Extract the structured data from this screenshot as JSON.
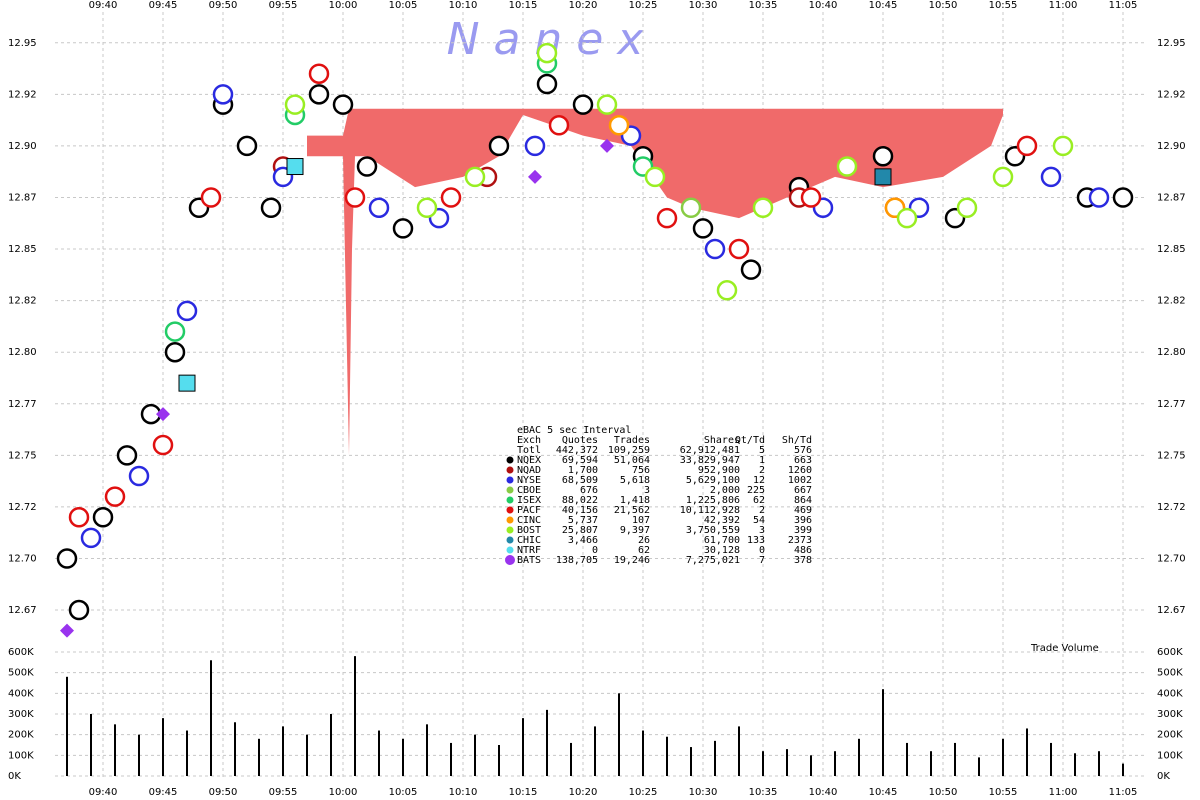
{
  "chart_data": [
    {
      "type": "scatter",
      "watermark": "N   a   n   e   x",
      "xlim": [
        "09:36",
        "11:07"
      ],
      "xticks": [
        "09:40",
        "09:45",
        "09:50",
        "09:55",
        "10:00",
        "10:05",
        "10:10",
        "10:15",
        "10:20",
        "10:25",
        "10:30",
        "10:35",
        "10:40",
        "10:45",
        "10:50",
        "10:55",
        "11:00",
        "11:05"
      ],
      "ylim": [
        12.66,
        12.962
      ],
      "yticks": [
        {
          "value": 12.95,
          "label": "12.95"
        },
        {
          "value": 12.925,
          "label": "12.92"
        },
        {
          "value": 12.9,
          "label": "12.90"
        },
        {
          "value": 12.875,
          "label": "12.87"
        },
        {
          "value": 12.85,
          "label": "12.85"
        },
        {
          "value": 12.825,
          "label": "12.82"
        },
        {
          "value": 12.8,
          "label": "12.80"
        },
        {
          "value": 12.775,
          "label": "12.77"
        },
        {
          "value": 12.75,
          "label": "12.75"
        },
        {
          "value": 12.725,
          "label": "12.72"
        },
        {
          "value": 12.7,
          "label": "12.70"
        },
        {
          "value": 12.675,
          "label": "12.67"
        }
      ],
      "grid": true,
      "band": {
        "color": "#f06a6a",
        "x": [
          "09:57",
          "10:00",
          "10:00:30",
          "10:00:45",
          "10:01",
          "10:02",
          "10:06",
          "10:10",
          "10:13",
          "10:15",
          "10:20",
          "10:24",
          "10:27",
          "10:29",
          "10:33",
          "10:37",
          "10:41",
          "10:45",
          "10:50",
          "10:54",
          "10:55"
        ],
        "high": [
          12.905,
          12.905,
          12.918,
          12.918,
          12.918,
          12.918,
          12.918,
          12.918,
          12.918,
          12.918,
          12.918,
          12.918,
          12.918,
          12.918,
          12.918,
          12.918,
          12.918,
          12.918,
          12.918,
          12.918,
          12.918
        ],
        "low": [
          12.895,
          12.895,
          12.75,
          12.85,
          12.895,
          12.895,
          12.88,
          12.885,
          12.895,
          12.915,
          12.905,
          12.9,
          12.875,
          12.87,
          12.865,
          12.875,
          12.885,
          12.88,
          12.885,
          12.9,
          12.915
        ]
      },
      "table": {
        "title": "eBAC 5 sec Interval",
        "header": [
          "Exch",
          "Quotes",
          "Trades",
          "Shares",
          "Qt/Td",
          "Sh/Td"
        ],
        "total": [
          "Totl",
          "442,372",
          "109,259",
          "62,912,481",
          "5",
          "576"
        ]
      },
      "series": [
        {
          "name": "NQEX",
          "color": "#000000",
          "marker": "circle",
          "x": [
            "09:37",
            "09:38",
            "09:40",
            "09:42",
            "09:44",
            "09:46",
            "09:48",
            "09:50",
            "09:52",
            "09:54",
            "09:58",
            "10:00",
            "10:02",
            "10:05",
            "10:13",
            "10:17",
            "10:20",
            "10:25",
            "10:30",
            "10:34",
            "10:38",
            "10:45",
            "10:51",
            "10:56",
            "11:02",
            "11:05"
          ],
          "values": [
            12.7,
            12.675,
            12.72,
            12.75,
            12.77,
            12.8,
            12.87,
            12.92,
            12.9,
            12.87,
            12.925,
            12.92,
            12.89,
            12.86,
            12.9,
            12.93,
            12.92,
            12.895,
            12.86,
            12.84,
            12.88,
            12.895,
            12.865,
            12.895,
            12.875,
            12.875
          ],
          "stats": [
            "69,594",
            "51,064",
            "33,829,947",
            "1",
            "663"
          ]
        },
        {
          "name": "NQAD",
          "color": "#b01010",
          "marker": "circle",
          "x": [
            "09:55",
            "10:12",
            "10:38"
          ],
          "values": [
            12.89,
            12.885,
            12.875
          ],
          "stats": [
            "1,700",
            "756",
            "952,900",
            "2",
            "1260"
          ]
        },
        {
          "name": "NYSE",
          "color": "#2a2ae0",
          "marker": "circle",
          "x": [
            "09:39",
            "09:43",
            "09:47",
            "09:50",
            "09:55",
            "10:03",
            "10:08",
            "10:16",
            "10:24",
            "10:31",
            "10:40",
            "10:48",
            "10:59",
            "11:03"
          ],
          "values": [
            12.71,
            12.74,
            12.82,
            12.925,
            12.885,
            12.87,
            12.865,
            12.9,
            12.905,
            12.85,
            12.87,
            12.87,
            12.885,
            12.875
          ],
          "stats": [
            "68,509",
            "5,618",
            "5,629,100",
            "12",
            "1002"
          ]
        },
        {
          "name": "CBOE",
          "color": "#88cc44",
          "marker": "circle",
          "x": [
            "10:29"
          ],
          "values": [
            12.87
          ],
          "stats": [
            "676",
            "3",
            "2,000",
            "225",
            "667"
          ]
        },
        {
          "name": "ISEX",
          "color": "#22cc66",
          "marker": "circle",
          "x": [
            "09:46",
            "09:56",
            "10:17",
            "10:25"
          ],
          "values": [
            12.81,
            12.915,
            12.94,
            12.89
          ],
          "stats": [
            "88,022",
            "1,418",
            "1,225,806",
            "62",
            "864"
          ]
        },
        {
          "name": "PACF",
          "color": "#e01010",
          "marker": "circle",
          "x": [
            "09:38",
            "09:41",
            "09:45",
            "09:49",
            "09:58",
            "10:01",
            "10:09",
            "10:18",
            "10:27",
            "10:33",
            "10:39",
            "10:46",
            "10:57"
          ],
          "values": [
            12.72,
            12.73,
            12.755,
            12.875,
            12.935,
            12.875,
            12.875,
            12.91,
            12.865,
            12.85,
            12.875,
            12.87,
            12.9
          ],
          "stats": [
            "40,156",
            "21,562",
            "10,112,928",
            "2",
            "469"
          ]
        },
        {
          "name": "CINC",
          "color": "#ff9900",
          "marker": "circle",
          "x": [
            "10:23",
            "10:46"
          ],
          "values": [
            12.91,
            12.87
          ],
          "stats": [
            "5,737",
            "107",
            "42,392",
            "54",
            "396"
          ]
        },
        {
          "name": "BOST",
          "color": "#99ee22",
          "marker": "circle",
          "x": [
            "09:56",
            "10:07",
            "10:11",
            "10:17",
            "10:22",
            "10:26",
            "10:32",
            "10:35",
            "10:42",
            "10:47",
            "10:52",
            "10:55",
            "11:00"
          ],
          "values": [
            12.92,
            12.87,
            12.885,
            12.945,
            12.92,
            12.885,
            12.83,
            12.87,
            12.89,
            12.865,
            12.87,
            12.885,
            12.9
          ],
          "stats": [
            "25,807",
            "9,397",
            "3,750,559",
            "3",
            "399"
          ]
        },
        {
          "name": "CHIC",
          "color": "#2288aa",
          "marker": "square",
          "x": [
            "10:45"
          ],
          "values": [
            12.885
          ],
          "stats": [
            "3,466",
            "26",
            "61,700",
            "133",
            "2373"
          ]
        },
        {
          "name": "NTRF",
          "color": "#55ddee",
          "marker": "square",
          "x": [
            "09:47",
            "09:56"
          ],
          "values": [
            12.785,
            12.89
          ],
          "stats": [
            "0",
            "62",
            "30,128",
            "0",
            "486"
          ]
        },
        {
          "name": "BATS",
          "color": "#9933ee",
          "marker": "diamond",
          "x": [
            "09:37",
            "09:45",
            "10:16",
            "10:22"
          ],
          "values": [
            12.665,
            12.77,
            12.885,
            12.9
          ],
          "stats": [
            "138,705",
            "19,246",
            "7,275,021",
            "7",
            "378"
          ]
        }
      ]
    },
    {
      "type": "bar",
      "label": "Trade Volume",
      "color": "#000000",
      "xlim": [
        "09:36",
        "11:07"
      ],
      "ylim": [
        0,
        600000
      ],
      "yticks": [
        {
          "value": 0,
          "label": "0K"
        },
        {
          "value": 100000,
          "label": "100K"
        },
        {
          "value": 200000,
          "label": "200K"
        },
        {
          "value": 300000,
          "label": "300K"
        },
        {
          "value": 400000,
          "label": "400K"
        },
        {
          "value": 500000,
          "label": "500K"
        },
        {
          "value": 600000,
          "label": "600K"
        }
      ],
      "x": [
        "09:37",
        "09:39",
        "09:41",
        "09:43",
        "09:45",
        "09:47",
        "09:49",
        "09:51",
        "09:53",
        "09:55",
        "09:57",
        "09:59",
        "10:01",
        "10:03",
        "10:05",
        "10:07",
        "10:09",
        "10:11",
        "10:13",
        "10:15",
        "10:17",
        "10:19",
        "10:21",
        "10:23",
        "10:25",
        "10:27",
        "10:29",
        "10:31",
        "10:33",
        "10:35",
        "10:37",
        "10:39",
        "10:41",
        "10:43",
        "10:45",
        "10:47",
        "10:49",
        "10:51",
        "10:53",
        "10:55",
        "10:57",
        "10:59",
        "11:01",
        "11:03",
        "11:05"
      ],
      "values": [
        480000,
        300000,
        250000,
        200000,
        280000,
        220000,
        560000,
        260000,
        180000,
        240000,
        200000,
        300000,
        580000,
        220000,
        180000,
        250000,
        160000,
        200000,
        150000,
        280000,
        320000,
        160000,
        240000,
        400000,
        220000,
        190000,
        140000,
        170000,
        240000,
        120000,
        130000,
        100000,
        120000,
        180000,
        420000,
        160000,
        120000,
        160000,
        90000,
        180000,
        230000,
        160000,
        110000,
        120000,
        60000
      ]
    }
  ]
}
